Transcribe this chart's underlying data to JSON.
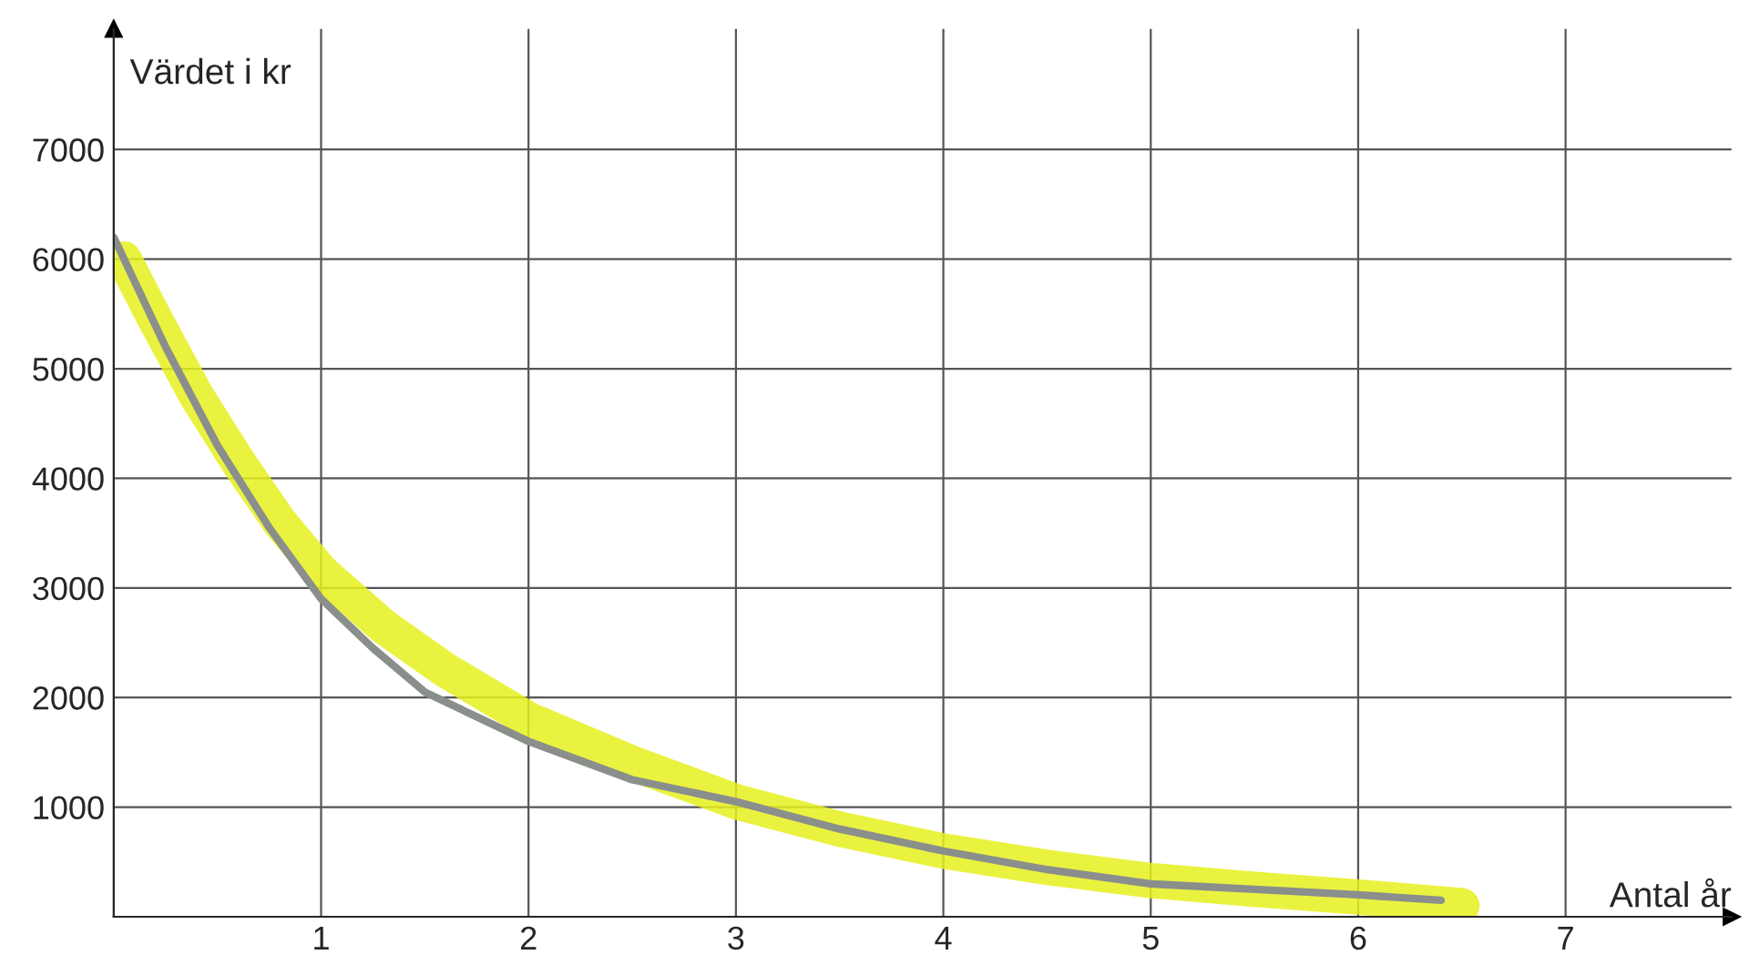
{
  "chart_data": {
    "type": "line",
    "xlabel": "Antal år",
    "ylabel": "Värdet i kr",
    "xlim": [
      0,
      7.8
    ],
    "ylim": [
      0,
      8100
    ],
    "xticks": [
      {
        "value": 0,
        "label": null
      },
      1,
      2,
      3,
      4,
      5,
      6,
      7
    ],
    "yticks": [
      {
        "value": 0,
        "label": null
      },
      1000,
      2000,
      3000,
      4000,
      5000,
      6000,
      7000
    ],
    "grid": true,
    "marker": "none",
    "line_style": "solid",
    "series": [
      {
        "color": "#e6f01e",
        "x": [
          0.05,
          0.2,
          0.4,
          0.6,
          0.8,
          1.0,
          1.3,
          1.6,
          2.0,
          2.5,
          3.0,
          3.5,
          4.0,
          4.5,
          5.0,
          5.5,
          6.0,
          6.5
        ],
        "values": [
          6000,
          5450,
          4750,
          4150,
          3600,
          3150,
          2650,
          2250,
          1800,
          1400,
          1050,
          800,
          600,
          450,
          330,
          250,
          180,
          100
        ]
      },
      {
        "color": "#8a8f8c",
        "x": [
          0.0,
          0.1,
          0.25,
          0.5,
          0.75,
          1.0,
          1.25,
          1.5,
          2.0,
          2.5,
          3.0,
          3.5,
          4.0,
          4.5,
          5.0,
          5.5,
          6.0,
          6.4
        ],
        "values": [
          6200,
          5800,
          5200,
          4300,
          3550,
          2900,
          2450,
          2050,
          1600,
          1250,
          1050,
          800,
          600,
          430,
          300,
          250,
          200,
          150
        ]
      }
    ]
  }
}
